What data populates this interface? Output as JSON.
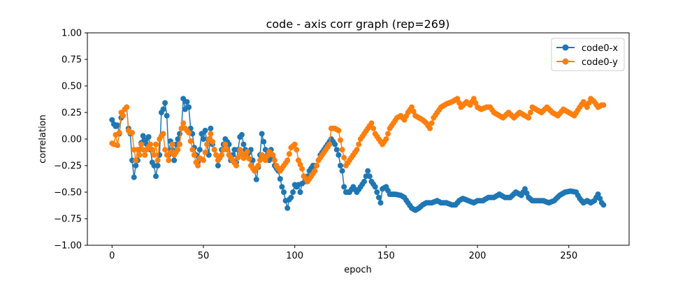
{
  "chart_data": {
    "type": "line",
    "title": "code - axis corr graph (rep=269)",
    "xlabel": "epoch",
    "ylabel": "correlation",
    "xlim": [
      -13.5,
      283
    ],
    "ylim": [
      -1.0,
      1.0
    ],
    "xticks": [
      0,
      50,
      100,
      150,
      200,
      250
    ],
    "yticks": [
      -1.0,
      -0.75,
      -0.5,
      -0.25,
      0.0,
      0.25,
      0.5,
      0.75,
      1.0
    ],
    "ytick_labels": [
      "−1.00",
      "−0.75",
      "−0.50",
      "−0.25",
      "0.00",
      "0.25",
      "0.50",
      "0.75",
      "1.00"
    ],
    "grid": false,
    "legend_position": "top-right",
    "marker": "circle",
    "series": [
      {
        "name": "code0-x",
        "color": "#1f77b4",
        "anchors": [
          [
            0,
            0.18
          ],
          [
            1,
            0.14
          ],
          [
            2,
            0.12
          ],
          [
            3,
            0.13
          ],
          [
            4,
            0.05
          ],
          [
            5,
            0.2
          ],
          [
            6,
            0.22
          ],
          [
            7,
            0.28
          ],
          [
            8,
            0.3
          ],
          [
            9,
            0.1
          ],
          [
            10,
            0.05
          ],
          [
            11,
            -0.2
          ],
          [
            12,
            -0.36
          ],
          [
            13,
            -0.25
          ],
          [
            14,
            -0.2
          ],
          [
            15,
            -0.1
          ],
          [
            17,
            0.03
          ],
          [
            19,
            -0.05
          ],
          [
            20,
            0.02
          ],
          [
            22,
            -0.22
          ],
          [
            23,
            -0.25
          ],
          [
            24,
            -0.35
          ],
          [
            26,
            -0.15
          ],
          [
            27,
            0.25
          ],
          [
            28,
            0.28
          ],
          [
            29,
            0.34
          ],
          [
            30,
            0.22
          ],
          [
            31,
            -0.15
          ],
          [
            32,
            -0.02
          ],
          [
            33,
            -0.1
          ],
          [
            34,
            -0.2
          ],
          [
            35,
            -0.05
          ],
          [
            37,
            0.05
          ],
          [
            38,
            0.1
          ],
          [
            39,
            0.38
          ],
          [
            40,
            0.28
          ],
          [
            41,
            0.35
          ],
          [
            42,
            0.3
          ],
          [
            43,
            0.1
          ],
          [
            44,
            0.05
          ],
          [
            45,
            -0.08
          ],
          [
            46,
            -0.15
          ],
          [
            47,
            -0.22
          ],
          [
            48,
            -0.1
          ],
          [
            49,
            0.05
          ],
          [
            50,
            0.0
          ],
          [
            51,
            0.08
          ],
          [
            52,
            -0.05
          ],
          [
            53,
            -0.15
          ],
          [
            54,
            0.1
          ],
          [
            55,
            -0.05
          ],
          [
            57,
            -0.15
          ],
          [
            58,
            -0.25
          ],
          [
            60,
            -0.1
          ],
          [
            62,
            0.0
          ],
          [
            64,
            -0.05
          ],
          [
            65,
            -0.2
          ],
          [
            67,
            -0.1
          ],
          [
            68,
            -0.22
          ],
          [
            70,
            0.02
          ],
          [
            71,
            0.04
          ],
          [
            72,
            -0.05
          ],
          [
            74,
            -0.15
          ],
          [
            76,
            -0.1
          ],
          [
            78,
            -0.3
          ],
          [
            79,
            -0.38
          ],
          [
            81,
            -0.15
          ],
          [
            82,
            0.05
          ],
          [
            84,
            -0.1
          ],
          [
            86,
            -0.2
          ],
          [
            87,
            -0.1
          ],
          [
            89,
            -0.25
          ],
          [
            91,
            -0.3
          ],
          [
            93,
            -0.45
          ],
          [
            94,
            -0.5
          ],
          [
            95,
            -0.58
          ],
          [
            96,
            -0.65
          ],
          [
            97,
            -0.57
          ],
          [
            98,
            -0.55
          ],
          [
            99,
            -0.5
          ],
          [
            100,
            -0.43
          ],
          [
            101,
            -0.45
          ],
          [
            102,
            -0.43
          ],
          [
            103,
            -0.5
          ],
          [
            104,
            -0.42
          ],
          [
            105,
            -0.35
          ],
          [
            106,
            -0.4
          ],
          [
            108,
            -0.3
          ],
          [
            110,
            -0.25
          ],
          [
            112,
            -0.25
          ],
          [
            114,
            -0.15
          ],
          [
            116,
            -0.1
          ],
          [
            118,
            -0.05
          ],
          [
            120,
            0.0
          ],
          [
            122,
            -0.05
          ],
          [
            124,
            -0.15
          ],
          [
            125,
            -0.25
          ],
          [
            126,
            -0.3
          ],
          [
            127,
            -0.45
          ],
          [
            128,
            -0.5
          ],
          [
            130,
            -0.5
          ],
          [
            132,
            -0.45
          ],
          [
            134,
            -0.5
          ],
          [
            136,
            -0.45
          ],
          [
            138,
            -0.4
          ],
          [
            140,
            -0.3
          ],
          [
            142,
            -0.4
          ],
          [
            144,
            -0.45
          ],
          [
            146,
            -0.55
          ],
          [
            147,
            -0.6
          ],
          [
            148,
            -0.47
          ],
          [
            150,
            -0.45
          ],
          [
            152,
            -0.52
          ],
          [
            155,
            -0.52
          ],
          [
            158,
            -0.53
          ],
          [
            160,
            -0.55
          ],
          [
            162,
            -0.6
          ],
          [
            164,
            -0.65
          ],
          [
            166,
            -0.67
          ],
          [
            168,
            -0.65
          ],
          [
            170,
            -0.62
          ],
          [
            172,
            -0.6
          ],
          [
            175,
            -0.6
          ],
          [
            178,
            -0.58
          ],
          [
            180,
            -0.6
          ],
          [
            183,
            -0.6
          ],
          [
            186,
            -0.62
          ],
          [
            188,
            -0.62
          ],
          [
            190,
            -0.58
          ],
          [
            192,
            -0.56
          ],
          [
            195,
            -0.58
          ],
          [
            198,
            -0.6
          ],
          [
            200,
            -0.58
          ],
          [
            203,
            -0.58
          ],
          [
            206,
            -0.55
          ],
          [
            209,
            -0.55
          ],
          [
            212,
            -0.52
          ],
          [
            215,
            -0.55
          ],
          [
            218,
            -0.55
          ],
          [
            221,
            -0.5
          ],
          [
            224,
            -0.53
          ],
          [
            226,
            -0.47
          ],
          [
            228,
            -0.55
          ],
          [
            230,
            -0.58
          ],
          [
            233,
            -0.58
          ],
          [
            236,
            -0.58
          ],
          [
            239,
            -0.6
          ],
          [
            242,
            -0.58
          ],
          [
            245,
            -0.53
          ],
          [
            248,
            -0.5
          ],
          [
            251,
            -0.49
          ],
          [
            254,
            -0.5
          ],
          [
            256,
            -0.56
          ],
          [
            258,
            -0.6
          ],
          [
            260,
            -0.58
          ],
          [
            262,
            -0.6
          ],
          [
            264,
            -0.58
          ],
          [
            266,
            -0.52
          ],
          [
            268,
            -0.6
          ],
          [
            269,
            -0.62
          ]
        ]
      },
      {
        "name": "code0-y",
        "color": "#ff7f0e",
        "anchors": [
          [
            0,
            -0.04
          ],
          [
            1,
            -0.05
          ],
          [
            2,
            0.04
          ],
          [
            3,
            -0.06
          ],
          [
            4,
            0.06
          ],
          [
            5,
            0.25
          ],
          [
            6,
            0.22
          ],
          [
            7,
            0.28
          ],
          [
            8,
            0.3
          ],
          [
            9,
            0.08
          ],
          [
            10,
            0.06
          ],
          [
            11,
            0.06
          ],
          [
            12,
            -0.1
          ],
          [
            13,
            -0.2
          ],
          [
            14,
            -0.1
          ],
          [
            15,
            -0.15
          ],
          [
            16,
            -0.05
          ],
          [
            18,
            -0.15
          ],
          [
            19,
            -0.1
          ],
          [
            21,
            -0.05
          ],
          [
            23,
            -0.15
          ],
          [
            24,
            -0.05
          ],
          [
            25,
            -0.2
          ],
          [
            26,
            0.0
          ],
          [
            27,
            0.03
          ],
          [
            28,
            0.05
          ],
          [
            29,
            -0.1
          ],
          [
            30,
            -0.15
          ],
          [
            31,
            -0.2
          ],
          [
            33,
            -0.05
          ],
          [
            34,
            -0.15
          ],
          [
            36,
            -0.1
          ],
          [
            37,
            -0.05
          ],
          [
            38,
            0.1
          ],
          [
            39,
            0.15
          ],
          [
            40,
            0.1
          ],
          [
            41,
            0.08
          ],
          [
            42,
            0.06
          ],
          [
            43,
            -0.02
          ],
          [
            44,
            -0.1
          ],
          [
            45,
            -0.15
          ],
          [
            46,
            -0.22
          ],
          [
            47,
            -0.25
          ],
          [
            48,
            -0.18
          ],
          [
            50,
            -0.2
          ],
          [
            52,
            -0.05
          ],
          [
            54,
            0.05
          ],
          [
            56,
            -0.1
          ],
          [
            58,
            -0.2
          ],
          [
            60,
            -0.15
          ],
          [
            62,
            -0.05
          ],
          [
            64,
            -0.15
          ],
          [
            66,
            -0.2
          ],
          [
            68,
            -0.25
          ],
          [
            70,
            -0.1
          ],
          [
            72,
            -0.18
          ],
          [
            74,
            -0.12
          ],
          [
            76,
            -0.25
          ],
          [
            78,
            -0.3
          ],
          [
            80,
            -0.25
          ],
          [
            82,
            -0.15
          ],
          [
            84,
            -0.2
          ],
          [
            86,
            -0.12
          ],
          [
            88,
            -0.15
          ],
          [
            90,
            -0.25
          ],
          [
            92,
            -0.3
          ],
          [
            94,
            -0.25
          ],
          [
            96,
            -0.2
          ],
          [
            98,
            -0.08
          ],
          [
            100,
            -0.05
          ],
          [
            101,
            -0.1
          ],
          [
            102,
            -0.2
          ],
          [
            104,
            -0.28
          ],
          [
            105,
            -0.35
          ],
          [
            107,
            -0.4
          ],
          [
            109,
            -0.35
          ],
          [
            111,
            -0.3
          ],
          [
            113,
            -0.2
          ],
          [
            115,
            -0.15
          ],
          [
            117,
            -0.1
          ],
          [
            119,
            -0.05
          ],
          [
            120,
            0.1
          ],
          [
            122,
            0.1
          ],
          [
            124,
            0.08
          ],
          [
            126,
            -0.1
          ],
          [
            128,
            -0.25
          ],
          [
            130,
            -0.2
          ],
          [
            132,
            -0.15
          ],
          [
            134,
            -0.1
          ],
          [
            136,
            0.0
          ],
          [
            138,
            0.05
          ],
          [
            140,
            0.1
          ],
          [
            142,
            0.15
          ],
          [
            144,
            0.05
          ],
          [
            146,
            0.0
          ],
          [
            148,
            -0.05
          ],
          [
            150,
            0.0
          ],
          [
            152,
            0.1
          ],
          [
            154,
            0.15
          ],
          [
            156,
            0.2
          ],
          [
            158,
            0.22
          ],
          [
            160,
            0.18
          ],
          [
            162,
            0.25
          ],
          [
            164,
            0.3
          ],
          [
            166,
            0.22
          ],
          [
            168,
            0.2
          ],
          [
            170,
            0.18
          ],
          [
            172,
            0.15
          ],
          [
            174,
            0.1
          ],
          [
            176,
            0.2
          ],
          [
            178,
            0.25
          ],
          [
            180,
            0.3
          ],
          [
            183,
            0.33
          ],
          [
            186,
            0.35
          ],
          [
            189,
            0.38
          ],
          [
            191,
            0.3
          ],
          [
            194,
            0.35
          ],
          [
            196,
            0.32
          ],
          [
            198,
            0.38
          ],
          [
            200,
            0.3
          ],
          [
            202,
            0.28
          ],
          [
            205,
            0.3
          ],
          [
            207,
            0.3
          ],
          [
            209,
            0.25
          ],
          [
            212,
            0.22
          ],
          [
            214,
            0.2
          ],
          [
            217,
            0.25
          ],
          [
            220,
            0.2
          ],
          [
            223,
            0.25
          ],
          [
            226,
            0.22
          ],
          [
            228,
            0.2
          ],
          [
            230,
            0.3
          ],
          [
            232,
            0.28
          ],
          [
            235,
            0.25
          ],
          [
            238,
            0.3
          ],
          [
            241,
            0.25
          ],
          [
            244,
            0.22
          ],
          [
            247,
            0.28
          ],
          [
            250,
            0.25
          ],
          [
            253,
            0.22
          ],
          [
            256,
            0.3
          ],
          [
            258,
            0.35
          ],
          [
            260,
            0.3
          ],
          [
            262,
            0.38
          ],
          [
            264,
            0.35
          ],
          [
            266,
            0.3
          ],
          [
            268,
            0.32
          ],
          [
            269,
            0.32
          ]
        ]
      }
    ]
  }
}
